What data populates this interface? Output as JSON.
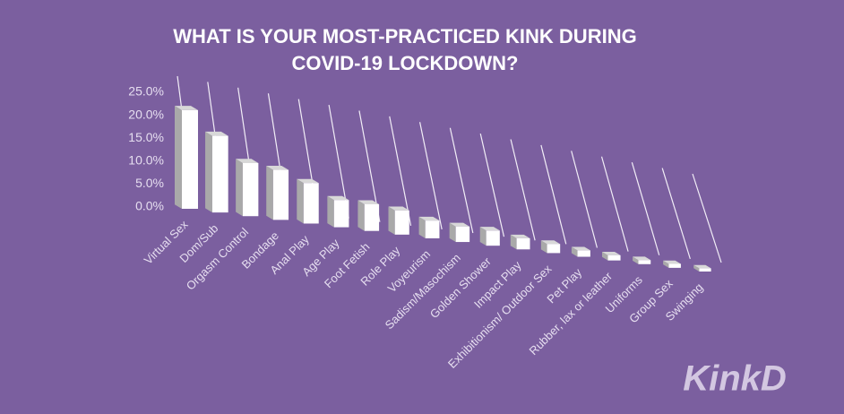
{
  "chart_data": {
    "type": "bar3d",
    "title": [
      "WHAT IS YOUR MOST-PRACTICED KINK DURING",
      "COVID-19 LOCKDOWN?"
    ],
    "categories": [
      "Virtual Sex",
      "Dom/Sub",
      "Orgasm Control",
      "Bondage",
      "Anal Play",
      "Age Play",
      "Foot Fetish",
      "Role Play",
      "Voyeurism",
      "Sadism/Masochism",
      "Golden Shower",
      "Impact Play",
      "Exhibitionism/ Outdoor Sex",
      "Pet Play",
      "Rubber, lax or leather",
      "Uniforms",
      "Group Sex",
      "Swinging"
    ],
    "values": [
      21.5,
      17,
      12,
      11.5,
      9.5,
      6.5,
      6.5,
      6,
      4.5,
      4,
      4,
      3,
      2.5,
      1.8,
      1.5,
      1.2,
      1.2,
      1
    ],
    "color": "#ffffff",
    "side_color": "#a9a9a9",
    "ylim": [
      0,
      25
    ],
    "yticks": [
      {
        "value": 0,
        "label": "0.0%"
      },
      {
        "value": 5,
        "label": "5.0%"
      },
      {
        "value": 10,
        "label": "10.0%"
      },
      {
        "value": 15,
        "label": "15.0%"
      },
      {
        "value": 20,
        "label": "20.0%"
      },
      {
        "value": 25,
        "label": "25.0%"
      }
    ],
    "grid": true
  },
  "logo": "KinkD"
}
